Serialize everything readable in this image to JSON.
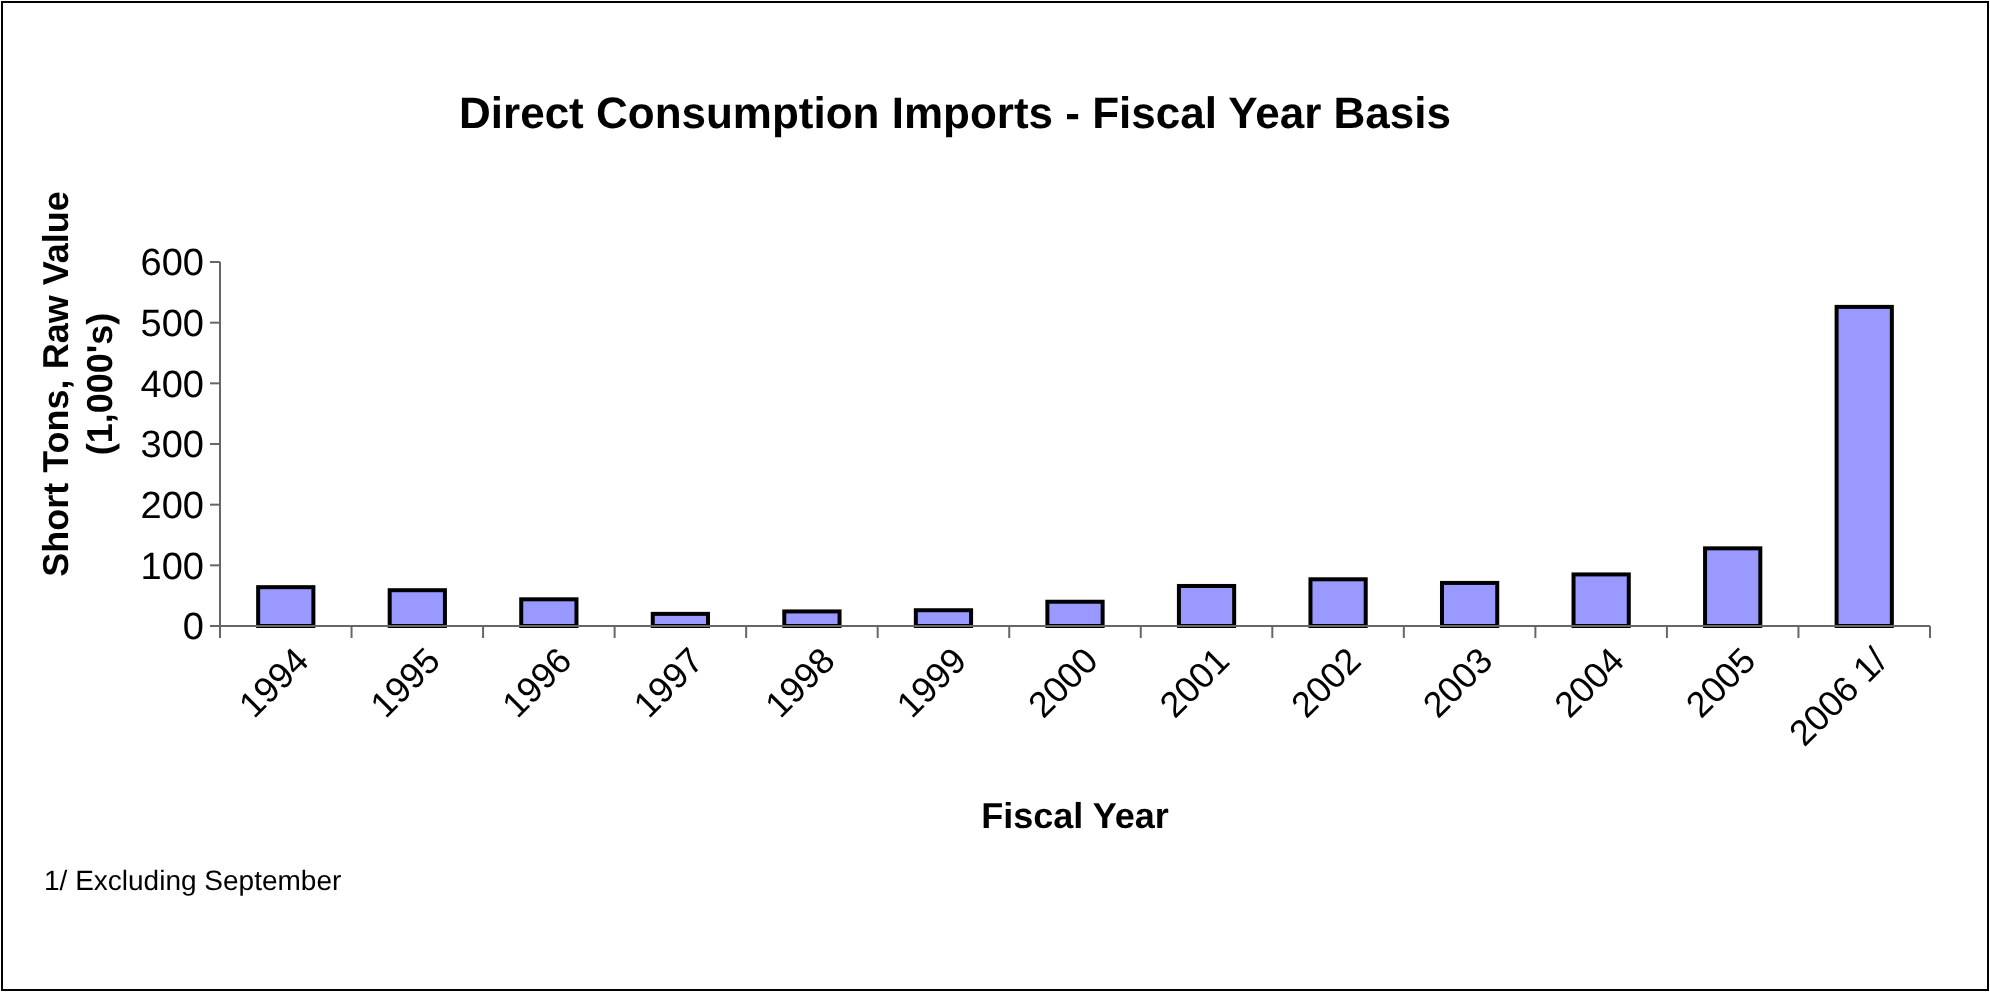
{
  "chart_data": {
    "type": "bar",
    "title": "Direct Consumption Imports - Fiscal Year Basis",
    "xlabel": "Fiscal Year",
    "ylabel": "Short Tons, Raw Value\n(1,000's)",
    "annotations": [
      "1/ Excluding September"
    ],
    "categories": [
      "1994",
      "1995",
      "1996",
      "1997",
      "1998",
      "1999",
      "2000",
      "2001",
      "2002",
      "2003",
      "2004",
      "2005",
      "2006 1/"
    ],
    "values": [
      64,
      59,
      44,
      20,
      24,
      26,
      40,
      66,
      77,
      71,
      85,
      128,
      526
    ],
    "color": "#9999ff",
    "ylim": [
      0,
      600
    ],
    "yticks": [
      0,
      100,
      200,
      300,
      400,
      500,
      600
    ],
    "grid": false
  }
}
